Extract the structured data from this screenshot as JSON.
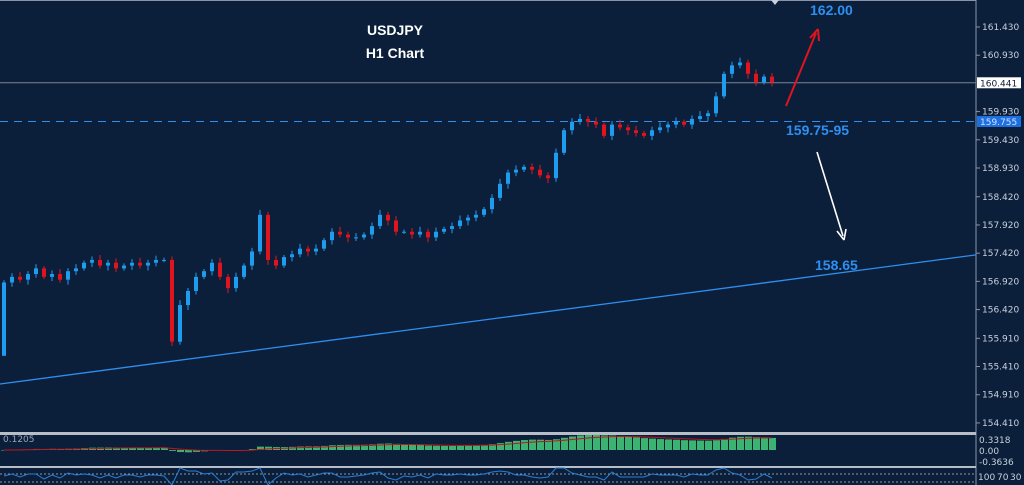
{
  "chart_data": {
    "type": "candlestick",
    "title": "USDJPY",
    "subtitle": "H1 Chart",
    "symbol": "USDJPY",
    "timeframe": "H1",
    "ylim": [
      154.2,
      161.9
    ],
    "y_ticks": [
      "161.430",
      "160.930",
      "159.930",
      "159.430",
      "158.930",
      "158.420",
      "157.920",
      "157.420",
      "156.920",
      "156.420",
      "155.910",
      "155.410",
      "154.910",
      "154.410"
    ],
    "tick_values": [
      161.43,
      160.93,
      159.93,
      159.43,
      158.93,
      158.42,
      157.92,
      157.42,
      156.92,
      156.42,
      155.91,
      155.41,
      154.91,
      154.41
    ],
    "closes": [
      156.9,
      157.0,
      156.95,
      157.05,
      157.15,
      157.0,
      157.05,
      156.95,
      157.1,
      157.15,
      157.25,
      157.3,
      157.2,
      157.25,
      157.15,
      157.2,
      157.25,
      157.2,
      157.25,
      157.3,
      157.3,
      155.85,
      156.5,
      156.75,
      157.0,
      157.1,
      157.25,
      157.0,
      156.8,
      157.0,
      157.2,
      157.45,
      158.1,
      157.3,
      157.2,
      157.35,
      157.4,
      157.5,
      157.45,
      157.5,
      157.65,
      157.8,
      157.75,
      157.7,
      157.7,
      157.75,
      157.9,
      158.1,
      158.0,
      157.8,
      157.8,
      157.75,
      157.8,
      157.7,
      157.8,
      157.85,
      157.9,
      158.0,
      158.05,
      158.1,
      158.2,
      158.4,
      158.65,
      158.85,
      158.9,
      158.95,
      158.9,
      158.8,
      158.75,
      159.2,
      159.6,
      159.75,
      159.8,
      159.75,
      159.7,
      159.5,
      159.7,
      159.65,
      159.6,
      159.55,
      159.5,
      159.6,
      159.65,
      159.7,
      159.75,
      159.7,
      159.8,
      159.85,
      159.9,
      160.2,
      160.6,
      160.75,
      160.8,
      160.6,
      160.45,
      160.55,
      160.45
    ],
    "first_open": 155.6,
    "current_price": {
      "label": "160.441",
      "value": 160.441
    },
    "support_level": {
      "label": "159.755",
      "value": 159.755
    },
    "trendline": {
      "start": 155.1,
      "end": 157.39
    },
    "annotations": {
      "target": "162.00",
      "zone": "159.75-95",
      "support": "158.65"
    },
    "colors": {
      "up": "#1e9cf0",
      "down": "#e0141e",
      "background": "#0b1f3a",
      "trendline": "#2f8ff0",
      "macd_hist": "#3cb371",
      "macd_signal": "#c0141e",
      "rsi": "#2a7fd4"
    },
    "macd": {
      "value_label": "0.1205",
      "ticks": [
        "0.3318",
        "0.00",
        "-0.3636"
      ]
    },
    "rsi": {
      "ticks": [
        "100",
        "70",
        "30"
      ]
    }
  }
}
